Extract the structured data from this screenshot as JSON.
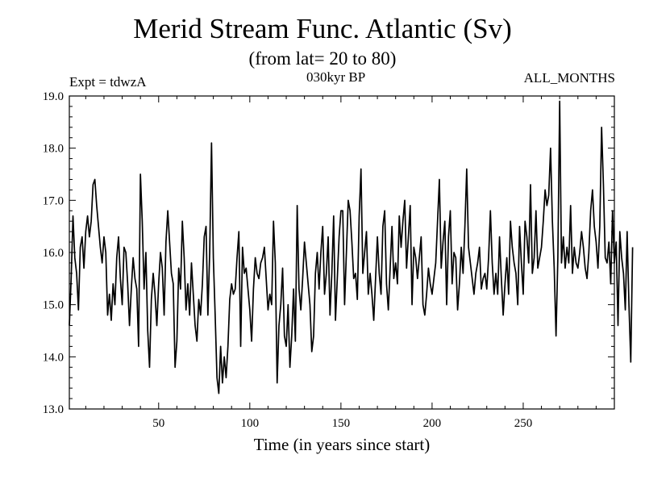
{
  "chart_data": {
    "type": "line",
    "title": "Merid Stream Func. Atlantic (Sv)",
    "subtitle": "(from lat= 20 to 80)",
    "experiment_label": "Expt = tdwzA",
    "period_label": "030kyr BP",
    "months_label": "ALL_MONTHS",
    "xlabel": "Time (in years since start)",
    "ylabel": "",
    "xlim": [
      1,
      300
    ],
    "ylim": [
      13.0,
      19.0
    ],
    "xticks": [
      50,
      100,
      150,
      200,
      250
    ],
    "xtick_labels": [
      "50",
      "100",
      "150",
      "200",
      "250"
    ],
    "yticks": [
      13,
      14,
      15,
      16,
      17,
      18,
      19
    ],
    "ytick_labels": [
      "13.0",
      "14.0",
      "15.0",
      "16.0",
      "17.0",
      "18.0",
      "19.0"
    ],
    "grid": false,
    "series": [
      {
        "color": "#000000",
        "x_start": 1,
        "x_step": 1,
        "values": [
          14.6,
          15.5,
          16.7,
          15.9,
          15.6,
          14.9,
          16.1,
          16.3,
          15.7,
          16.4,
          16.7,
          16.3,
          16.6,
          17.3,
          17.4,
          16.9,
          16.5,
          16.1,
          15.8,
          16.3,
          16.0,
          14.8,
          15.2,
          14.7,
          15.4,
          15.0,
          15.9,
          16.3,
          15.5,
          15.0,
          16.1,
          16.0,
          15.4,
          14.6,
          15.3,
          15.9,
          15.5,
          15.3,
          14.2,
          17.5,
          16.6,
          15.3,
          16.0,
          14.5,
          13.8,
          15.1,
          15.6,
          15.2,
          14.6,
          15.4,
          16.0,
          15.7,
          14.8,
          16.2,
          16.8,
          16.2,
          15.6,
          15.4,
          13.8,
          14.3,
          15.7,
          15.3,
          16.6,
          15.9,
          14.9,
          15.4,
          14.8,
          15.8,
          15.2,
          14.6,
          14.3,
          15.1,
          14.8,
          15.4,
          16.3,
          16.5,
          14.8,
          16.0,
          18.1,
          15.9,
          14.8,
          13.6,
          13.3,
          14.2,
          13.5,
          14.0,
          13.6,
          14.2,
          15.1,
          15.4,
          15.2,
          15.3,
          15.9,
          16.4,
          14.2,
          16.1,
          15.6,
          15.7,
          15.3,
          14.9,
          14.3,
          15.3,
          15.9,
          15.6,
          15.5,
          15.8,
          15.9,
          16.1,
          15.5,
          14.9,
          15.2,
          15.0,
          16.6,
          15.8,
          13.5,
          14.6,
          15.0,
          15.7,
          14.4,
          14.2,
          15.0,
          13.8,
          14.4,
          15.3,
          14.3,
          16.9,
          15.3,
          14.9,
          15.5,
          16.2,
          15.8,
          15.4,
          15.0,
          14.1,
          14.4,
          15.6,
          16.0,
          15.3,
          16.0,
          16.5,
          15.2,
          15.6,
          16.3,
          14.8,
          15.6,
          16.7,
          14.7,
          15.5,
          16.3,
          16.8,
          16.8,
          15.0,
          16.0,
          17.0,
          16.8,
          16.2,
          15.5,
          15.6,
          15.1,
          16.7,
          17.6,
          15.6,
          16.0,
          16.4,
          15.2,
          15.6,
          15.2,
          14.7,
          15.5,
          16.3,
          15.6,
          15.2,
          16.5,
          16.8,
          15.4,
          14.9,
          15.7,
          16.5,
          15.5,
          15.8,
          15.4,
          16.7,
          16.1,
          16.6,
          17.0,
          15.7,
          16.3,
          16.9,
          15.0,
          16.1,
          15.9,
          15.5,
          15.9,
          16.3,
          15.0,
          14.8,
          15.2,
          15.7,
          15.4,
          15.2,
          15.5,
          15.8,
          16.6,
          17.4,
          15.7,
          16.2,
          16.6,
          15.0,
          16.3,
          16.8,
          15.4,
          16.0,
          15.9,
          14.9,
          15.4,
          16.1,
          15.6,
          16.5,
          17.6,
          16.1,
          15.8,
          15.5,
          15.2,
          15.6,
          15.8,
          16.1,
          15.3,
          15.5,
          15.6,
          15.3,
          15.9,
          16.8,
          15.8,
          15.2,
          15.6,
          15.2,
          16.3,
          15.5,
          14.8,
          15.4,
          15.9,
          15.2,
          16.6,
          16.1,
          15.8,
          15.6,
          15.0,
          16.5,
          15.8,
          15.2,
          16.6,
          16.3,
          15.8,
          17.3,
          15.6,
          15.9,
          16.8,
          15.7,
          15.9,
          16.1,
          16.6,
          17.2,
          16.9,
          17.1,
          18.0,
          16.6,
          15.7,
          14.4,
          15.9,
          18.9,
          15.8,
          16.3,
          15.7,
          16.1,
          15.8,
          16.9,
          15.6,
          16.1,
          15.8,
          15.7,
          16.0,
          16.4,
          16.1,
          15.7,
          15.5,
          16.0,
          16.8,
          17.2,
          16.5,
          16.2,
          15.7,
          16.5,
          18.4,
          17.3,
          15.9,
          15.8,
          16.2,
          15.4,
          16.8,
          15.8,
          16.2,
          14.6,
          16.4,
          15.9,
          15.6,
          14.9,
          16.4,
          15.0,
          13.9,
          16.1
        ]
      }
    ]
  }
}
